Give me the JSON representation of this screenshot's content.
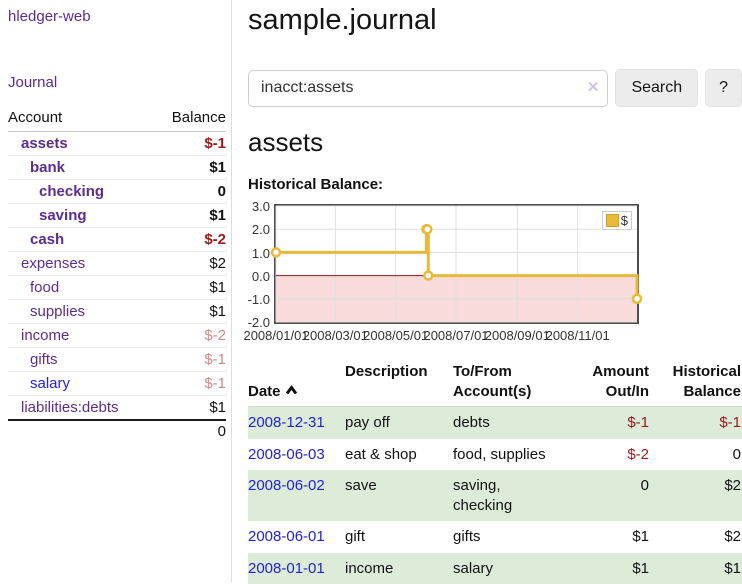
{
  "app": {
    "brand": "hledger-web"
  },
  "nav": {
    "journal": "Journal"
  },
  "sidebar": {
    "account_col": "Account",
    "balance_col": "Balance",
    "accounts": [
      {
        "name": "assets",
        "balance": "$-1",
        "level": 1,
        "emphasis": true,
        "balance_tone": "negative-strong"
      },
      {
        "name": "bank",
        "balance": "$1",
        "level": 2,
        "emphasis": true,
        "balance_tone": "normal"
      },
      {
        "name": "checking",
        "balance": "0",
        "level": 3,
        "emphasis": true,
        "balance_tone": "normal"
      },
      {
        "name": "saving",
        "balance": "$1",
        "level": 3,
        "emphasis": true,
        "balance_tone": "normal"
      },
      {
        "name": "cash",
        "balance": "$-2",
        "level": 2,
        "emphasis": true,
        "balance_tone": "negative-strong"
      },
      {
        "name": "expenses",
        "balance": "$2",
        "level": 1,
        "emphasis": false,
        "balance_tone": "normal"
      },
      {
        "name": "food",
        "balance": "$1",
        "level": 2,
        "emphasis": false,
        "balance_tone": "normal"
      },
      {
        "name": "supplies",
        "balance": "$1",
        "level": 2,
        "emphasis": false,
        "balance_tone": "normal"
      },
      {
        "name": "income",
        "balance": "$-2",
        "level": 1,
        "emphasis": false,
        "balance_tone": "negative-soft"
      },
      {
        "name": "gifts",
        "balance": "$-1",
        "level": 2,
        "emphasis": false,
        "balance_tone": "negative-soft"
      },
      {
        "name": "salary",
        "balance": "$-1",
        "level": 2,
        "emphasis": false,
        "balance_tone": "negative-soft"
      },
      {
        "name": "liabilities:debts",
        "balance": "$1",
        "level": 1,
        "emphasis": false,
        "balance_tone": "normal"
      }
    ],
    "total": "0"
  },
  "header": {
    "title": "sample.journal"
  },
  "search": {
    "value": "inacct:assets",
    "clear_icon": "✕",
    "search_button": "Search",
    "help_button": "?"
  },
  "section": {
    "heading": "assets",
    "chart_label": "Historical Balance:"
  },
  "chart_data": {
    "type": "line",
    "title": "Historical Balance:",
    "series": [
      {
        "name": "$",
        "color": "#e8ba3a",
        "interpolation": "step-after",
        "points": [
          [
            "2008-01-01",
            1
          ],
          [
            "2008-06-01",
            2
          ],
          [
            "2008-06-02",
            2
          ],
          [
            "2008-06-03",
            0
          ],
          [
            "2008-12-31",
            -1
          ]
        ]
      }
    ],
    "x_domain": [
      "2008-01-01",
      "2008-12-31"
    ],
    "x_ticks": [
      "2008/01/01",
      "2008/03/01",
      "2008/05/01",
      "2008/07/01",
      "2008/09/01",
      "2008/11/01"
    ],
    "x_tick_values": [
      "2008-01-01",
      "2008-03-01",
      "2008-05-01",
      "2008-07-01",
      "2008-09-01",
      "2008-11-01"
    ],
    "y_ticks": [
      "3.0",
      "2.0",
      "1.0",
      "0.0",
      "-1.0",
      "-2.0"
    ],
    "y_tick_values": [
      3,
      2,
      1,
      0,
      -1,
      -2
    ],
    "ylim": [
      -2,
      3
    ],
    "grid": true,
    "legend_position": "top-right",
    "negative_region_color": "#f9dbdb",
    "zero_line_color": "#8f1414",
    "grid_color": "#e0e0e0"
  },
  "register": {
    "headers": {
      "date": "Date",
      "description": "Description",
      "account": "To/From\nAccount(s)",
      "amount": "Amount\nOut/In",
      "balance": "Historical\nBalance"
    },
    "rows": [
      {
        "date": "2008-12-31",
        "description": "pay off",
        "account": "debts",
        "amount": "$-1",
        "balance": "$-1"
      },
      {
        "date": "2008-06-03",
        "description": "eat & shop",
        "account": "food, supplies",
        "amount": "$-2",
        "balance": "0"
      },
      {
        "date": "2008-06-02",
        "description": "save",
        "account": "saving,\nchecking",
        "amount": "0",
        "balance": "$2"
      },
      {
        "date": "2008-06-01",
        "description": "gift",
        "account": "gifts",
        "amount": "$1",
        "balance": "$2"
      },
      {
        "date": "2008-01-01",
        "description": "income",
        "account": "salary",
        "amount": "$1",
        "balance": "$1"
      }
    ]
  }
}
